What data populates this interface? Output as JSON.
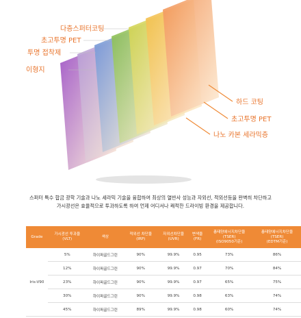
{
  "diagram": {
    "left_labels": [
      "다층스퍼터코팅",
      "초고투명 PET",
      "투명 접착제",
      "이형지"
    ],
    "right_labels": [
      "하드 코팅",
      "초고투명 PET",
      "나노 카본 세라믹층"
    ]
  },
  "description": [
    "스퍼터 특수 합금 광학 기술과 나노 세라믹 기술을 융합하여 최상의 열반사 성능과 자외선, 적외선등을 완벽히 차단하고",
    "가시광선은 효율적으로 투과하도록 하여 언제 어디서나 쾌적한 드라이빙 환경을 제공합니다."
  ],
  "table": {
    "header": [
      [
        "Grade"
      ],
      [
        "가시광선 투과율",
        "(VLT)"
      ],
      [
        "색상"
      ],
      [
        "적외선 차단율",
        "(IRP)"
      ],
      [
        "자외선차단율",
        "(UVR)"
      ],
      [
        "변색율",
        "(FR)"
      ],
      [
        "총태양에너지차단율",
        "(TSER)",
        "(ISO9050기준)"
      ],
      [
        "총태양에너지차단율",
        "(TSER)",
        "(EDTM기준)"
      ]
    ],
    "grade": "Iris-V90",
    "rows": [
      [
        "5%",
        "하이퍼골드그린",
        "90%",
        "99.9%",
        "0.95",
        "73%",
        "86%"
      ],
      [
        "12%",
        "하이퍼골드그린",
        "90%",
        "99.9%",
        "0.97",
        "70%",
        "84%"
      ],
      [
        "23%",
        "하이퍼골드그린",
        "90%",
        "99.9%",
        "0.97",
        "65%",
        "75%"
      ],
      [
        "30%",
        "하이퍼골드그린",
        "90%",
        "99.9%",
        "0.98",
        "63%",
        "74%"
      ],
      [
        "45%",
        "하이퍼골드그린",
        "89%",
        "99.9%",
        "0.98",
        "60%",
        "74%"
      ]
    ]
  }
}
